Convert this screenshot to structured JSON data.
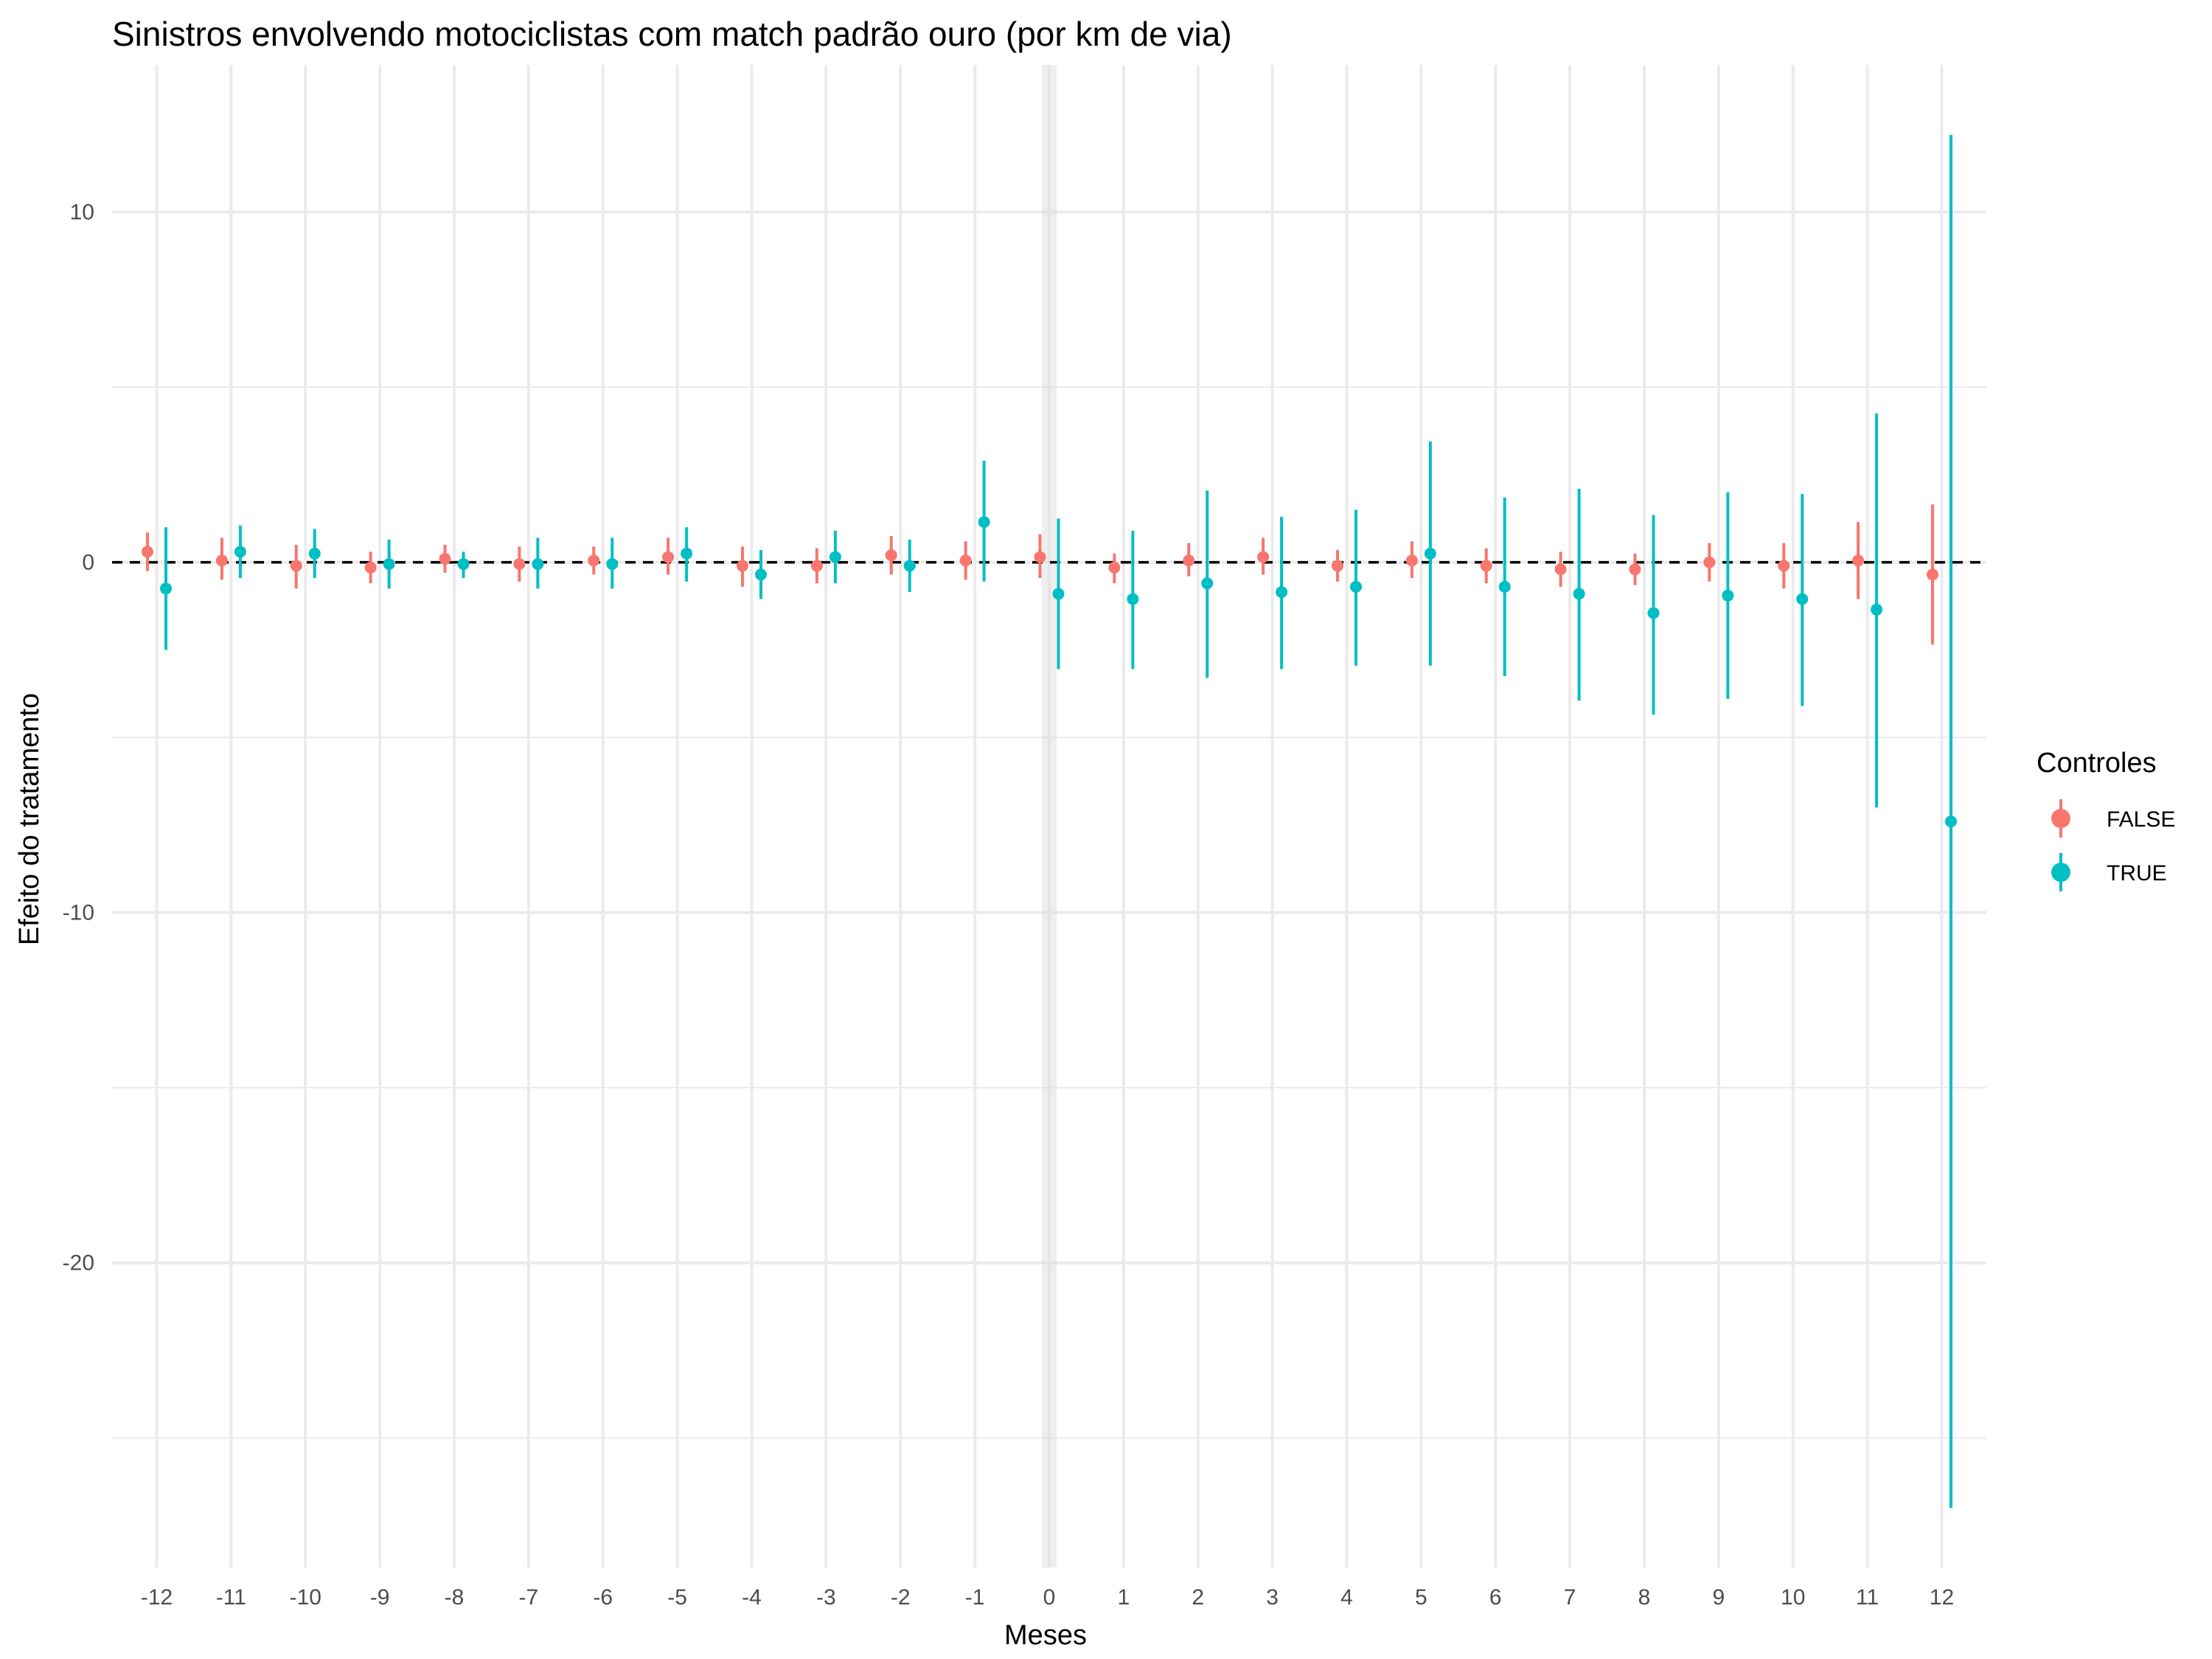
{
  "chart_data": {
    "type": "scatter",
    "title": "Sinistros envolvendo motociclistas com match padrão ouro (por km de via)",
    "xlabel": "Meses",
    "ylabel": "Efeito do tratamento",
    "x_ticks": [
      "-12",
      "-11",
      "-10",
      "-9",
      "-8",
      "-7",
      "-6",
      "-5",
      "-4",
      "-3",
      "-2",
      "-1",
      "0",
      "1",
      "2",
      "3",
      "4",
      "5",
      "6",
      "7",
      "8",
      "9",
      "10",
      "11",
      "12"
    ],
    "y_ticks": [
      {
        "value": 10,
        "label": "10"
      },
      {
        "value": 0,
        "label": "0"
      },
      {
        "value": -10,
        "label": "-10"
      },
      {
        "value": -20,
        "label": "-20"
      }
    ],
    "ylim": [
      -28.7,
      14.2
    ],
    "xlim": [
      -12.6,
      12.6
    ],
    "reference_line_y": 0,
    "shaded_x": 0,
    "grid": true,
    "legend": {
      "title": "Controles",
      "placement": "right"
    },
    "series": [
      {
        "name": "FALSE",
        "color": "#F8766D",
        "points": [
          {
            "x": -12,
            "y": 0.3,
            "lo": -0.25,
            "hi": 0.85
          },
          {
            "x": -11,
            "y": 0.05,
            "lo": -0.5,
            "hi": 0.7
          },
          {
            "x": -10,
            "y": -0.1,
            "lo": -0.75,
            "hi": 0.5
          },
          {
            "x": -9,
            "y": -0.15,
            "lo": -0.6,
            "hi": 0.3
          },
          {
            "x": -8,
            "y": 0.1,
            "lo": -0.3,
            "hi": 0.5
          },
          {
            "x": -7,
            "y": -0.05,
            "lo": -0.55,
            "hi": 0.45
          },
          {
            "x": -6,
            "y": 0.05,
            "lo": -0.35,
            "hi": 0.45
          },
          {
            "x": -5,
            "y": 0.15,
            "lo": -0.35,
            "hi": 0.7
          },
          {
            "x": -4,
            "y": -0.1,
            "lo": -0.7,
            "hi": 0.45
          },
          {
            "x": -3,
            "y": -0.1,
            "lo": -0.6,
            "hi": 0.4
          },
          {
            "x": -2,
            "y": 0.2,
            "lo": -0.35,
            "hi": 0.75
          },
          {
            "x": -1,
            "y": 0.05,
            "lo": -0.5,
            "hi": 0.6
          },
          {
            "x": 0,
            "y": 0.15,
            "lo": -0.45,
            "hi": 0.8
          },
          {
            "x": 1,
            "y": -0.15,
            "lo": -0.6,
            "hi": 0.25
          },
          {
            "x": 2,
            "y": 0.05,
            "lo": -0.4,
            "hi": 0.55
          },
          {
            "x": 3,
            "y": 0.15,
            "lo": -0.35,
            "hi": 0.7
          },
          {
            "x": 4,
            "y": -0.1,
            "lo": -0.55,
            "hi": 0.35
          },
          {
            "x": 5,
            "y": 0.05,
            "lo": -0.45,
            "hi": 0.6
          },
          {
            "x": 6,
            "y": -0.1,
            "lo": -0.6,
            "hi": 0.4
          },
          {
            "x": 7,
            "y": -0.2,
            "lo": -0.7,
            "hi": 0.3
          },
          {
            "x": 8,
            "y": -0.2,
            "lo": -0.65,
            "hi": 0.25
          },
          {
            "x": 9,
            "y": 0.0,
            "lo": -0.55,
            "hi": 0.55
          },
          {
            "x": 10,
            "y": -0.1,
            "lo": -0.75,
            "hi": 0.55
          },
          {
            "x": 11,
            "y": 0.05,
            "lo": -1.05,
            "hi": 1.15
          },
          {
            "x": 12,
            "y": -0.35,
            "lo": -2.35,
            "hi": 1.65
          }
        ]
      },
      {
        "name": "TRUE",
        "color": "#00BFC4",
        "points": [
          {
            "x": -12,
            "y": -0.75,
            "lo": -2.5,
            "hi": 1.0
          },
          {
            "x": -11,
            "y": 0.3,
            "lo": -0.45,
            "hi": 1.05
          },
          {
            "x": -10,
            "y": 0.25,
            "lo": -0.45,
            "hi": 0.95
          },
          {
            "x": -9,
            "y": -0.05,
            "lo": -0.75,
            "hi": 0.65
          },
          {
            "x": -8,
            "y": -0.05,
            "lo": -0.45,
            "hi": 0.3
          },
          {
            "x": -7,
            "y": -0.05,
            "lo": -0.75,
            "hi": 0.7
          },
          {
            "x": -6,
            "y": -0.05,
            "lo": -0.75,
            "hi": 0.7
          },
          {
            "x": -5,
            "y": 0.25,
            "lo": -0.55,
            "hi": 1.0
          },
          {
            "x": -4,
            "y": -0.35,
            "lo": -1.05,
            "hi": 0.35
          },
          {
            "x": -3,
            "y": 0.15,
            "lo": -0.6,
            "hi": 0.9
          },
          {
            "x": -2,
            "y": -0.1,
            "lo": -0.85,
            "hi": 0.65
          },
          {
            "x": -1,
            "y": 1.15,
            "lo": -0.55,
            "hi": 2.9
          },
          {
            "x": 0,
            "y": -0.9,
            "lo": -3.05,
            "hi": 1.25
          },
          {
            "x": 1,
            "y": -1.05,
            "lo": -3.05,
            "hi": 0.9
          },
          {
            "x": 2,
            "y": -0.6,
            "lo": -3.3,
            "hi": 2.05
          },
          {
            "x": 3,
            "y": -0.85,
            "lo": -3.05,
            "hi": 1.3
          },
          {
            "x": 4,
            "y": -0.7,
            "lo": -2.95,
            "hi": 1.5
          },
          {
            "x": 5,
            "y": 0.25,
            "lo": -2.95,
            "hi": 3.45
          },
          {
            "x": 6,
            "y": -0.7,
            "lo": -3.25,
            "hi": 1.85
          },
          {
            "x": 7,
            "y": -0.9,
            "lo": -3.95,
            "hi": 2.1
          },
          {
            "x": 8,
            "y": -1.45,
            "lo": -4.35,
            "hi": 1.35
          },
          {
            "x": 9,
            "y": -0.95,
            "lo": -3.9,
            "hi": 2.0
          },
          {
            "x": 10,
            "y": -1.05,
            "lo": -4.1,
            "hi": 1.95
          },
          {
            "x": 11,
            "y": -1.35,
            "lo": -7.0,
            "hi": 4.25
          },
          {
            "x": 12,
            "y": -7.4,
            "lo": -27.0,
            "hi": 12.2
          }
        ]
      }
    ]
  }
}
